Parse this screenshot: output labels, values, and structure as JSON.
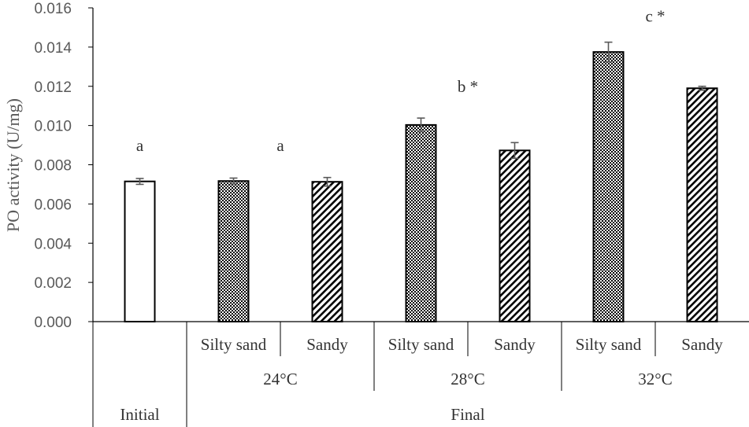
{
  "chart_data": {
    "type": "bar",
    "ylabel": "PO activity (U/mg)",
    "ylim": [
      0,
      0.016
    ],
    "ytick_values": [
      0,
      0.002,
      0.004,
      0.006,
      0.008,
      0.01,
      0.012,
      0.014,
      0.016
    ],
    "ytick_labels": [
      "0.000",
      "0.002",
      "0.004",
      "0.006",
      "0.008",
      "0.010",
      "0.012",
      "0.014",
      "0.016"
    ],
    "bars": [
      {
        "value": 0.00715,
        "error": 0.00015,
        "pattern": "none",
        "soil": "",
        "temperature": "",
        "phase": "Initial"
      },
      {
        "value": 0.00717,
        "error": 0.00015,
        "pattern": "checker",
        "soil": "Silty sand",
        "temperature": "24°C",
        "phase": "Final"
      },
      {
        "value": 0.00713,
        "error": 0.00022,
        "pattern": "diagonal",
        "soil": "Sandy",
        "temperature": "24°C",
        "phase": "Final"
      },
      {
        "value": 0.01003,
        "error": 0.00035,
        "pattern": "checker",
        "soil": "Silty sand",
        "temperature": "28°C",
        "phase": "Final"
      },
      {
        "value": 0.00873,
        "error": 0.0004,
        "pattern": "diagonal",
        "soil": "Sandy",
        "temperature": "28°C",
        "phase": "Final"
      },
      {
        "value": 0.01375,
        "error": 0.0005,
        "pattern": "checker",
        "soil": "Silty sand",
        "temperature": "32°C",
        "phase": "Final"
      },
      {
        "value": 0.0119,
        "error": 0.0001,
        "pattern": "diagonal",
        "soil": "Sandy",
        "temperature": "32°C",
        "phase": "Final"
      }
    ],
    "category_levels": {
      "soil": [
        "Silty sand",
        "Sandy",
        "Silty sand",
        "Sandy",
        "Silty sand",
        "Sandy"
      ],
      "temperature": [
        "24°C",
        "28°C",
        "32°C"
      ],
      "phase": [
        "Initial",
        "Final"
      ]
    },
    "annotations": [
      {
        "text": "a",
        "x_index": 0,
        "y": 0.0087
      },
      {
        "text": "a",
        "x_index": 1.5,
        "y": 0.0087
      },
      {
        "text": "b *",
        "x_index": 3.5,
        "y": 0.0117
      },
      {
        "text": "c *",
        "x_index": 5.5,
        "y": 0.0153
      }
    ],
    "grid": false,
    "legend": "none",
    "colors": {
      "bar_edge": "#000000",
      "axis": "#000000",
      "tick_text": "#595959",
      "error_bar": "#595959"
    }
  }
}
